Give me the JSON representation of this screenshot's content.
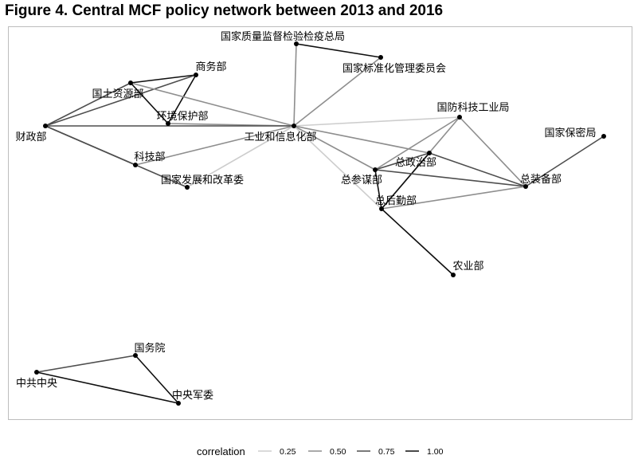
{
  "title": "Figure 4. Central MCF policy network between 2013 and 2016",
  "colors": {
    "background": "#ffffff",
    "panel_border": "#bdbdbd",
    "node": "#000000"
  },
  "nodes": [
    {
      "id": "zljd",
      "label": "国家质量监督检验检疫总局"
    },
    {
      "id": "bzh",
      "label": "国家标准化管理委员会"
    },
    {
      "id": "swb",
      "label": "商务部"
    },
    {
      "id": "gtzy",
      "label": "国土资源部"
    },
    {
      "id": "hjbh",
      "label": "环境保护部"
    },
    {
      "id": "czb",
      "label": "财政部"
    },
    {
      "id": "gyxx",
      "label": "工业和信息化部"
    },
    {
      "id": "kjb",
      "label": "科技部"
    },
    {
      "id": "fgw",
      "label": "国家发展和改革委"
    },
    {
      "id": "gfkj",
      "label": "国防科技工业局"
    },
    {
      "id": "bmj",
      "label": "国家保密局"
    },
    {
      "id": "zzb",
      "label": "总政治部"
    },
    {
      "id": "zcmb",
      "label": "总参谋部"
    },
    {
      "id": "zzbb",
      "label": "总装备部"
    },
    {
      "id": "zhqb",
      "label": "总后勤部"
    },
    {
      "id": "nyb",
      "label": "农业部"
    },
    {
      "id": "gwy",
      "label": "国务院"
    },
    {
      "id": "zgzy",
      "label": "中共中央"
    },
    {
      "id": "zyjw",
      "label": "中央军委"
    }
  ],
  "edges": [
    {
      "source": "zljd",
      "target": "bzh",
      "correlation": 1.0
    },
    {
      "source": "zljd",
      "target": "gyxx",
      "correlation": 0.5
    },
    {
      "source": "bzh",
      "target": "gyxx",
      "correlation": 0.5
    },
    {
      "source": "swb",
      "target": "gtzy",
      "correlation": 1.0
    },
    {
      "source": "swb",
      "target": "hjbh",
      "correlation": 1.0
    },
    {
      "source": "swb",
      "target": "czb",
      "correlation": 0.75
    },
    {
      "source": "gtzy",
      "target": "hjbh",
      "correlation": 1.0
    },
    {
      "source": "gtzy",
      "target": "czb",
      "correlation": 0.75
    },
    {
      "source": "gtzy",
      "target": "gyxx",
      "correlation": 0.5
    },
    {
      "source": "hjbh",
      "target": "gyxx",
      "correlation": 0.5
    },
    {
      "source": "czb",
      "target": "gyxx",
      "correlation": 0.75
    },
    {
      "source": "czb",
      "target": "kjb",
      "correlation": 0.75
    },
    {
      "source": "czb",
      "target": "fgw",
      "correlation": 0.75
    },
    {
      "source": "kjb",
      "target": "gyxx",
      "correlation": 0.5
    },
    {
      "source": "fgw",
      "target": "gyxx",
      "correlation": 0.25
    },
    {
      "source": "gyxx",
      "target": "gfkj",
      "correlation": 0.25
    },
    {
      "source": "gyxx",
      "target": "zzb",
      "correlation": 0.5
    },
    {
      "source": "gyxx",
      "target": "zcmb",
      "correlation": 0.5
    },
    {
      "source": "gyxx",
      "target": "zhqb",
      "correlation": 0.25
    },
    {
      "source": "gfkj",
      "target": "zcmb",
      "correlation": 0.5
    },
    {
      "source": "gfkj",
      "target": "zhqb",
      "correlation": 0.5
    },
    {
      "source": "gfkj",
      "target": "zzbb",
      "correlation": 0.5
    },
    {
      "source": "bmj",
      "target": "zzbb",
      "correlation": 0.75
    },
    {
      "source": "zzb",
      "target": "zcmb",
      "correlation": 0.75
    },
    {
      "source": "zzb",
      "target": "zhqb",
      "correlation": 1.0
    },
    {
      "source": "zzb",
      "target": "zzbb",
      "correlation": 0.75
    },
    {
      "source": "zcmb",
      "target": "zzbb",
      "correlation": 0.75
    },
    {
      "source": "zcmb",
      "target": "zhqb",
      "correlation": 1.0
    },
    {
      "source": "zhqb",
      "target": "zzbb",
      "correlation": 0.5
    },
    {
      "source": "zhqb",
      "target": "nyb",
      "correlation": 1.0
    },
    {
      "source": "gwy",
      "target": "zgzy",
      "correlation": 0.75
    },
    {
      "source": "gwy",
      "target": "zyjw",
      "correlation": 1.0
    },
    {
      "source": "zgzy",
      "target": "zyjw",
      "correlation": 1.0
    }
  ],
  "legend": {
    "title": "correlation",
    "items": [
      {
        "label": "0.25",
        "value": 0.25
      },
      {
        "label": "0.50",
        "value": 0.5
      },
      {
        "label": "0.75",
        "value": 0.75
      },
      {
        "label": "1.00",
        "value": 1.0
      }
    ]
  }
}
